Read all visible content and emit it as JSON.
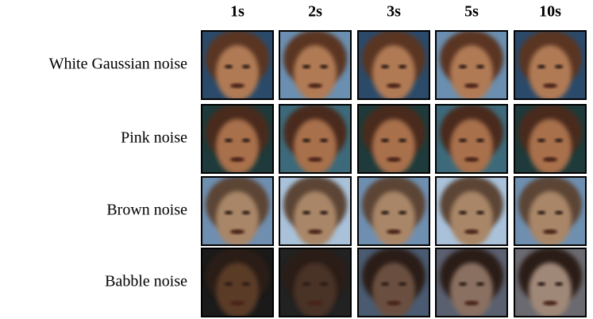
{
  "header": {
    "columns": [
      "1s",
      "2s",
      "3s",
      "5s",
      "10s"
    ]
  },
  "rows": [
    {
      "label": "White Gaussian noise"
    },
    {
      "label": "Pink noise"
    },
    {
      "label": "Brown noise"
    },
    {
      "label": "Babble noise"
    }
  ]
}
